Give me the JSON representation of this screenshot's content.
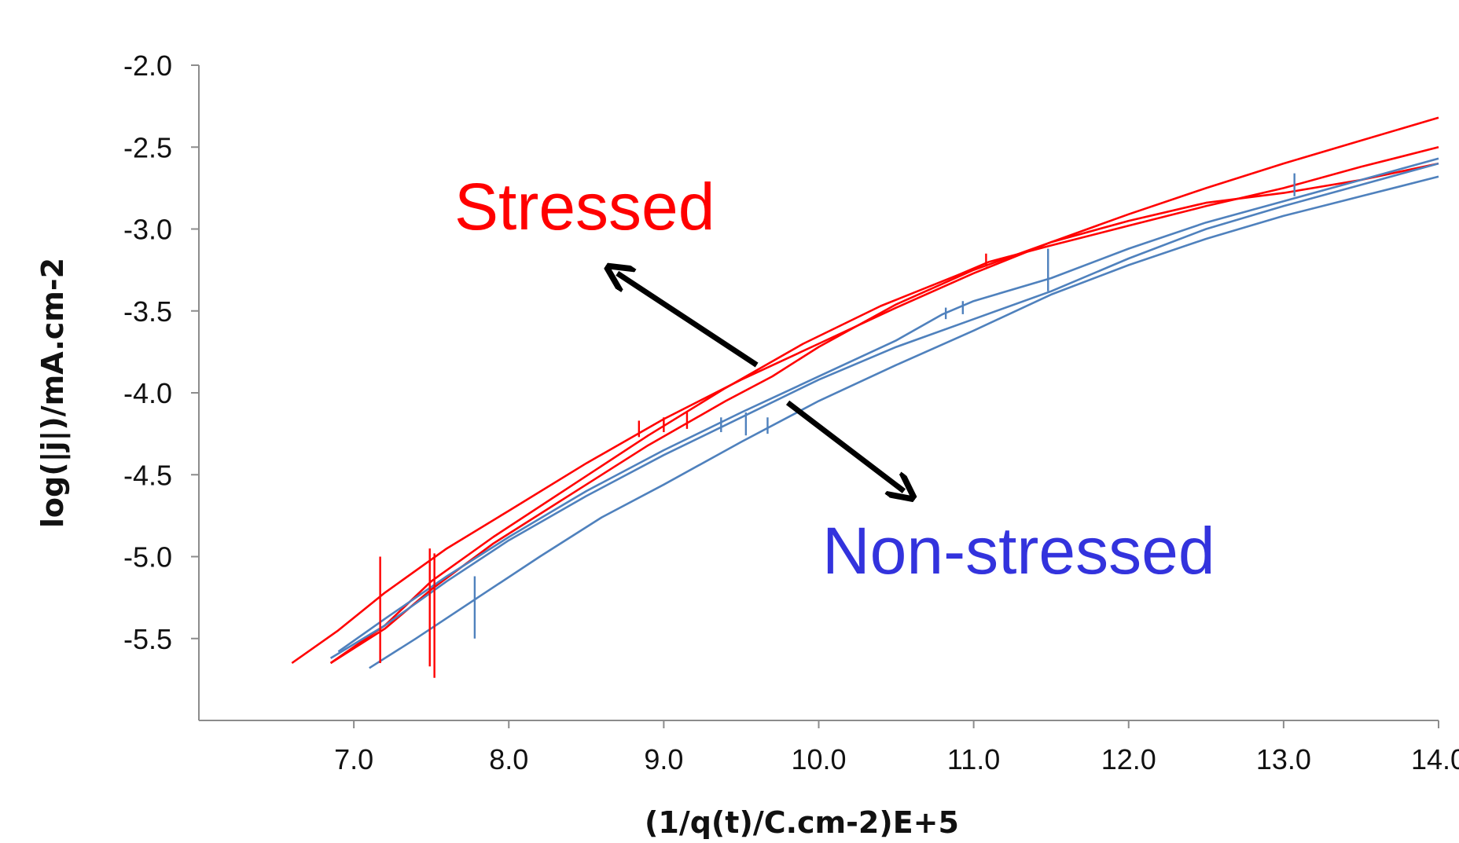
{
  "chart_data": {
    "type": "line",
    "title": "",
    "xlabel": "(1/q(t)/C.cm-2)E+5",
    "ylabel": "log(|j|)/mA.cm-2",
    "xlim": [
      6.0,
      14.0
    ],
    "ylim": [
      -6.0,
      -2.0
    ],
    "x_ticks": [
      7.0,
      8.0,
      9.0,
      10.0,
      11.0,
      12.0,
      13.0,
      14.0
    ],
    "x_tick_labels": [
      "7.0",
      "8.0",
      "9.0",
      "10.0",
      "11.0",
      "12.0",
      "13.0",
      "14.0"
    ],
    "y_ticks": [
      -2.0,
      -2.5,
      -3.0,
      -3.5,
      -4.0,
      -4.5,
      -5.0,
      -5.5
    ],
    "y_tick_labels": [
      "-2.0",
      "-2.5",
      "-3.0",
      "-3.5",
      "-4.0",
      "-4.5",
      "-5.0",
      "-5.5"
    ],
    "grid": false,
    "legend": "none",
    "series": [
      {
        "color": "#ff0000",
        "x": [
          6.6,
          6.9,
          7.2,
          7.6,
          8.0,
          8.5,
          9.0,
          9.5,
          10.0,
          10.5,
          11.0,
          11.5,
          12.0,
          12.5,
          13.0,
          13.5,
          14.0
        ],
        "y": [
          -5.65,
          -5.45,
          -5.22,
          -4.95,
          -4.72,
          -4.43,
          -4.16,
          -3.92,
          -3.7,
          -3.48,
          -3.27,
          -3.08,
          -2.91,
          -2.75,
          -2.6,
          -2.46,
          -2.32
        ]
      },
      {
        "color": "#ff0000",
        "x": [
          6.85,
          7.2,
          7.5,
          7.9,
          8.4,
          8.9,
          9.4,
          9.9,
          10.4,
          10.9,
          11.1,
          11.5,
          12.0,
          12.5,
          13.0,
          13.5,
          14.0
        ],
        "y": [
          -5.65,
          -5.42,
          -5.15,
          -4.88,
          -4.57,
          -4.26,
          -3.97,
          -3.7,
          -3.47,
          -3.28,
          -3.2,
          -3.1,
          -2.98,
          -2.86,
          -2.75,
          -2.62,
          -2.5
        ]
      },
      {
        "color": "#ff0000",
        "x": [
          6.85,
          7.2,
          7.5,
          7.9,
          8.4,
          8.9,
          9.4,
          9.7,
          10.0,
          10.5,
          11.0,
          11.5,
          12.0,
          12.5,
          13.0,
          13.5,
          14.0
        ],
        "y": [
          -5.65,
          -5.44,
          -5.2,
          -4.92,
          -4.62,
          -4.32,
          -4.05,
          -3.9,
          -3.72,
          -3.46,
          -3.25,
          -3.08,
          -2.95,
          -2.84,
          -2.78,
          -2.7,
          -2.6
        ]
      },
      {
        "color": "#4f81bd",
        "x": [
          6.9,
          7.2,
          7.6,
          8.0,
          8.5,
          9.0,
          9.5,
          10.0,
          10.5,
          10.8,
          11.0,
          11.5,
          12.0,
          12.5,
          13.0,
          13.5,
          14.0
        ],
        "y": [
          -5.58,
          -5.38,
          -5.12,
          -4.88,
          -4.6,
          -4.35,
          -4.12,
          -3.9,
          -3.68,
          -3.52,
          -3.44,
          -3.3,
          -3.12,
          -2.96,
          -2.83,
          -2.7,
          -2.57
        ]
      },
      {
        "color": "#4f81bd",
        "x": [
          6.85,
          7.2,
          7.6,
          8.0,
          8.5,
          9.0,
          9.5,
          10.0,
          10.5,
          11.0,
          11.5,
          12.0,
          12.5,
          13.0,
          13.5,
          14.0
        ],
        "y": [
          -5.62,
          -5.42,
          -5.15,
          -4.9,
          -4.63,
          -4.38,
          -4.15,
          -3.92,
          -3.72,
          -3.55,
          -3.38,
          -3.18,
          -3.0,
          -2.86,
          -2.73,
          -2.6
        ]
      },
      {
        "color": "#4f81bd",
        "x": [
          7.1,
          7.4,
          7.8,
          8.2,
          8.6,
          9.0,
          9.5,
          10.0,
          10.5,
          11.0,
          11.5,
          12.0,
          12.5,
          13.0,
          13.5,
          14.0
        ],
        "y": [
          -5.68,
          -5.5,
          -5.25,
          -5.0,
          -4.76,
          -4.56,
          -4.3,
          -4.05,
          -3.83,
          -3.62,
          -3.4,
          -3.22,
          -3.06,
          -2.92,
          -2.8,
          -2.68
        ]
      }
    ],
    "spikes": [
      {
        "color": "#ff0000",
        "x": 7.17,
        "y_top": -5.0,
        "y_bottom": -5.65
      },
      {
        "color": "#ff0000",
        "x": 7.49,
        "y_top": -4.95,
        "y_bottom": -5.67
      },
      {
        "color": "#ff0000",
        "x": 7.52,
        "y_top": -4.98,
        "y_bottom": -5.74
      },
      {
        "color": "#ff0000",
        "x": 8.84,
        "y_top": -4.17,
        "y_bottom": -4.27
      },
      {
        "color": "#ff0000",
        "x": 9.0,
        "y_top": -4.15,
        "y_bottom": -4.24
      },
      {
        "color": "#ff0000",
        "x": 9.15,
        "y_top": -4.12,
        "y_bottom": -4.22
      },
      {
        "color": "#ff0000",
        "x": 11.08,
        "y_top": -3.15,
        "y_bottom": -3.23
      },
      {
        "color": "#4f81bd",
        "x": 7.78,
        "y_top": -5.12,
        "y_bottom": -5.5
      },
      {
        "color": "#4f81bd",
        "x": 9.37,
        "y_top": -4.15,
        "y_bottom": -4.24
      },
      {
        "color": "#4f81bd",
        "x": 9.53,
        "y_top": -4.12,
        "y_bottom": -4.26
      },
      {
        "color": "#4f81bd",
        "x": 9.67,
        "y_top": -4.15,
        "y_bottom": -4.25
      },
      {
        "color": "#4f81bd",
        "x": 10.82,
        "y_top": -3.48,
        "y_bottom": -3.55
      },
      {
        "color": "#4f81bd",
        "x": 10.93,
        "y_top": -3.44,
        "y_bottom": -3.52
      },
      {
        "color": "#4f81bd",
        "x": 11.48,
        "y_top": -3.12,
        "y_bottom": -3.38
      },
      {
        "color": "#4f81bd",
        "x": 13.07,
        "y_top": -2.66,
        "y_bottom": -2.8
      }
    ],
    "annotations": [
      {
        "text": "Stressed",
        "color": "#ff0000",
        "arrow_from": [
          9.6,
          -3.83
        ],
        "arrow_to": [
          8.7,
          -3.27
        ]
      },
      {
        "text": "Non-stressed",
        "color": "#3333dd",
        "arrow_from": [
          9.8,
          -4.06
        ],
        "arrow_to": [
          10.55,
          -4.6
        ]
      }
    ]
  }
}
